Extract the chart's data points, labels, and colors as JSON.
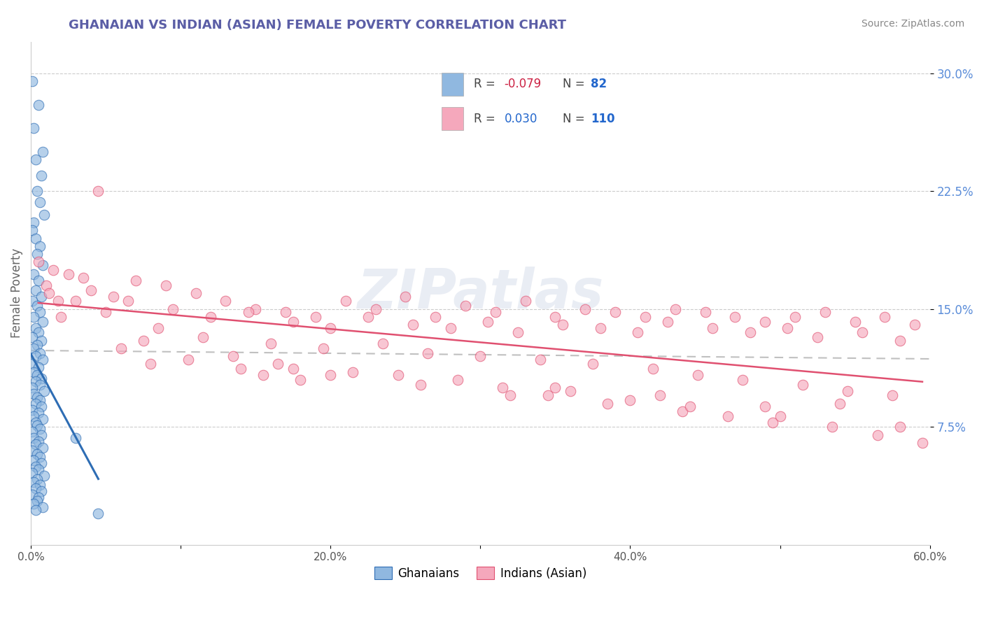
{
  "title": "GHANAIAN VS INDIAN (ASIAN) FEMALE POVERTY CORRELATION CHART",
  "source": "Source: ZipAtlas.com",
  "ylabel": "Female Poverty",
  "xlim": [
    0.0,
    0.6
  ],
  "ylim": [
    0.0,
    0.32
  ],
  "xtick_labels": [
    "0.0%",
    "",
    "20.0%",
    "",
    "40.0%",
    "",
    "60.0%"
  ],
  "xtick_vals": [
    0.0,
    0.1,
    0.2,
    0.3,
    0.4,
    0.5,
    0.6
  ],
  "ytick_labels": [
    "7.5%",
    "15.0%",
    "22.5%",
    "30.0%"
  ],
  "ytick_vals": [
    0.075,
    0.15,
    0.225,
    0.3
  ],
  "title_color": "#5b5ea6",
  "title_fontsize": 13,
  "axis_label_color": "#666666",
  "tick_label_color": "#555555",
  "ytick_color": "#5b8dd9",
  "source_color": "#888888",
  "source_fontsize": 10,
  "watermark": "ZIPatlas",
  "ghanaian_color": "#90b8e0",
  "indian_color": "#f5a8bc",
  "ghanaian_line_color": "#2e6db4",
  "indian_line_color": "#e05070",
  "trend_dashed_color": "#c0c0c0",
  "legend_R1": "-0.079",
  "legend_N1": "82",
  "legend_R2": "0.030",
  "legend_N2": "110",
  "ghanaian_scatter_x": [
    0.001,
    0.005,
    0.002,
    0.008,
    0.003,
    0.007,
    0.004,
    0.006,
    0.009,
    0.002,
    0.001,
    0.003,
    0.006,
    0.004,
    0.008,
    0.002,
    0.005,
    0.003,
    0.007,
    0.001,
    0.004,
    0.006,
    0.002,
    0.008,
    0.003,
    0.005,
    0.001,
    0.007,
    0.004,
    0.002,
    0.006,
    0.003,
    0.008,
    0.001,
    0.005,
    0.002,
    0.004,
    0.007,
    0.003,
    0.006,
    0.001,
    0.009,
    0.002,
    0.004,
    0.006,
    0.003,
    0.007,
    0.001,
    0.005,
    0.002,
    0.008,
    0.003,
    0.004,
    0.006,
    0.001,
    0.007,
    0.002,
    0.005,
    0.003,
    0.008,
    0.001,
    0.004,
    0.006,
    0.002,
    0.007,
    0.003,
    0.005,
    0.001,
    0.009,
    0.004,
    0.002,
    0.006,
    0.003,
    0.007,
    0.001,
    0.005,
    0.004,
    0.002,
    0.008,
    0.003,
    0.03,
    0.045
  ],
  "ghanaian_scatter_y": [
    0.295,
    0.28,
    0.265,
    0.25,
    0.245,
    0.235,
    0.225,
    0.218,
    0.21,
    0.205,
    0.2,
    0.195,
    0.19,
    0.185,
    0.178,
    0.172,
    0.168,
    0.162,
    0.158,
    0.155,
    0.152,
    0.148,
    0.145,
    0.142,
    0.138,
    0.135,
    0.132,
    0.13,
    0.127,
    0.125,
    0.122,
    0.12,
    0.118,
    0.115,
    0.113,
    0.11,
    0.108,
    0.106,
    0.104,
    0.102,
    0.1,
    0.098,
    0.096,
    0.094,
    0.092,
    0.09,
    0.088,
    0.086,
    0.084,
    0.082,
    0.08,
    0.078,
    0.076,
    0.074,
    0.072,
    0.07,
    0.068,
    0.066,
    0.064,
    0.062,
    0.06,
    0.058,
    0.056,
    0.054,
    0.052,
    0.05,
    0.048,
    0.046,
    0.044,
    0.042,
    0.04,
    0.038,
    0.036,
    0.034,
    0.032,
    0.03,
    0.028,
    0.026,
    0.024,
    0.022,
    0.068,
    0.02
  ],
  "indian_scatter_x": [
    0.005,
    0.015,
    0.025,
    0.04,
    0.055,
    0.07,
    0.09,
    0.11,
    0.13,
    0.15,
    0.17,
    0.19,
    0.21,
    0.23,
    0.25,
    0.27,
    0.29,
    0.31,
    0.33,
    0.35,
    0.37,
    0.39,
    0.41,
    0.43,
    0.45,
    0.47,
    0.49,
    0.51,
    0.53,
    0.55,
    0.57,
    0.59,
    0.035,
    0.065,
    0.095,
    0.12,
    0.145,
    0.175,
    0.2,
    0.225,
    0.255,
    0.28,
    0.305,
    0.325,
    0.355,
    0.38,
    0.405,
    0.425,
    0.455,
    0.48,
    0.505,
    0.525,
    0.555,
    0.58,
    0.01,
    0.05,
    0.085,
    0.115,
    0.16,
    0.195,
    0.235,
    0.265,
    0.3,
    0.34,
    0.375,
    0.415,
    0.445,
    0.475,
    0.515,
    0.545,
    0.575,
    0.03,
    0.075,
    0.135,
    0.165,
    0.215,
    0.245,
    0.285,
    0.315,
    0.345,
    0.385,
    0.435,
    0.465,
    0.495,
    0.535,
    0.565,
    0.595,
    0.06,
    0.105,
    0.155,
    0.175,
    0.35,
    0.42,
    0.49,
    0.02,
    0.18,
    0.36,
    0.54,
    0.08,
    0.26,
    0.44,
    0.012,
    0.14,
    0.32,
    0.5,
    0.018,
    0.2,
    0.4,
    0.58,
    0.045
  ],
  "indian_scatter_y": [
    0.18,
    0.175,
    0.172,
    0.162,
    0.158,
    0.168,
    0.165,
    0.16,
    0.155,
    0.15,
    0.148,
    0.145,
    0.155,
    0.15,
    0.158,
    0.145,
    0.152,
    0.148,
    0.155,
    0.145,
    0.15,
    0.148,
    0.145,
    0.15,
    0.148,
    0.145,
    0.142,
    0.145,
    0.148,
    0.142,
    0.145,
    0.14,
    0.17,
    0.155,
    0.15,
    0.145,
    0.148,
    0.142,
    0.138,
    0.145,
    0.14,
    0.138,
    0.142,
    0.135,
    0.14,
    0.138,
    0.135,
    0.142,
    0.138,
    0.135,
    0.138,
    0.132,
    0.135,
    0.13,
    0.165,
    0.148,
    0.138,
    0.132,
    0.128,
    0.125,
    0.128,
    0.122,
    0.12,
    0.118,
    0.115,
    0.112,
    0.108,
    0.105,
    0.102,
    0.098,
    0.095,
    0.155,
    0.13,
    0.12,
    0.115,
    0.11,
    0.108,
    0.105,
    0.1,
    0.095,
    0.09,
    0.085,
    0.082,
    0.078,
    0.075,
    0.07,
    0.065,
    0.125,
    0.118,
    0.108,
    0.112,
    0.1,
    0.095,
    0.088,
    0.145,
    0.105,
    0.098,
    0.09,
    0.115,
    0.102,
    0.088,
    0.16,
    0.112,
    0.095,
    0.082,
    0.155,
    0.108,
    0.092,
    0.075,
    0.225
  ]
}
